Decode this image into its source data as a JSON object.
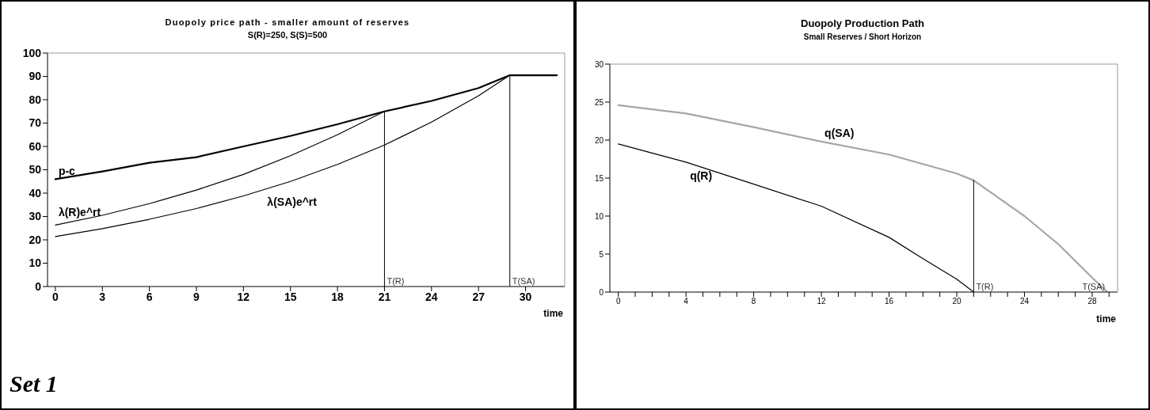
{
  "chart_data": [
    {
      "type": "line",
      "title": "Duopoly price path - smaller amount of reserves",
      "subtitle": "S(R)=250, S(S)=500",
      "xlabel": "time",
      "xlim": [
        -0.5,
        32.5
      ],
      "xticks": [
        0,
        3,
        6,
        9,
        12,
        15,
        18,
        21,
        24,
        27,
        30
      ],
      "ylim": [
        0,
        100
      ],
      "yticks": [
        0,
        10,
        20,
        30,
        40,
        50,
        60,
        70,
        80,
        90,
        100
      ],
      "marker": "none",
      "line_style": "solid",
      "annotations": [
        "Set 1"
      ],
      "ref_lines": [
        {
          "axis": "x",
          "value": 21,
          "label": "T(R)",
          "color": "#000000"
        },
        {
          "axis": "x",
          "value": 29,
          "label": "T(SA)",
          "color": "#000000"
        }
      ],
      "series": [
        {
          "name": "p-c",
          "color": "#000000",
          "x": [
            0,
            3,
            6,
            9,
            12,
            15,
            18,
            21,
            24,
            27,
            29,
            30,
            31,
            32
          ],
          "values": [
            46,
            49.3,
            53,
            55.4,
            60,
            64.5,
            69.5,
            75,
            79.5,
            85,
            90.5,
            90.5,
            90.5,
            90.5
          ]
        },
        {
          "name": "λ(R)e^rt",
          "color": "#000000",
          "x": [
            0,
            3,
            6,
            9,
            12,
            15,
            18,
            21
          ],
          "values": [
            26.3,
            30.5,
            35.5,
            41.3,
            48,
            56,
            65,
            75
          ]
        },
        {
          "name": "λ(SA)e^rt",
          "color": "#000000",
          "x": [
            0,
            3,
            6,
            9,
            12,
            15,
            18,
            21,
            24,
            27,
            29
          ],
          "values": [
            21.4,
            24.8,
            28.8,
            33.4,
            38.8,
            45,
            52.3,
            60.6,
            70.4,
            81.7,
            90.5
          ]
        }
      ]
    },
    {
      "type": "line",
      "title": "Duopoly Production Path",
      "subtitle": "Small Reserves / Short Horizon",
      "xlabel": "time",
      "xlim": [
        -0.5,
        29.5
      ],
      "xticks": [
        0,
        {
          "value": 1,
          "label": null
        },
        {
          "value": 2,
          "label": null
        },
        {
          "value": 3,
          "label": null
        },
        4,
        {
          "value": 5,
          "label": null
        },
        {
          "value": 6,
          "label": null
        },
        {
          "value": 7,
          "label": null
        },
        8,
        {
          "value": 9,
          "label": null
        },
        {
          "value": 10,
          "label": null
        },
        {
          "value": 11,
          "label": null
        },
        12,
        {
          "value": 13,
          "label": null
        },
        {
          "value": 14,
          "label": null
        },
        {
          "value": 15,
          "label": null
        },
        16,
        {
          "value": 17,
          "label": null
        },
        {
          "value": 18,
          "label": null
        },
        {
          "value": 19,
          "label": null
        },
        20,
        {
          "value": 21,
          "label": null
        },
        {
          "value": 22,
          "label": null
        },
        {
          "value": 23,
          "label": null
        },
        24,
        {
          "value": 25,
          "label": null
        },
        {
          "value": 26,
          "label": null
        },
        {
          "value": 27,
          "label": null
        },
        28,
        {
          "value": 29,
          "label": null
        }
      ],
      "ylim": [
        0,
        30
      ],
      "yticks": [
        0,
        5,
        10,
        15,
        20,
        25,
        30
      ],
      "marker": "none",
      "line_style": "solid",
      "annotations": [
        {
          "text": "T(R)",
          "x": 21,
          "y": 0
        },
        {
          "text": "T(SA)",
          "x": 28.9,
          "y": 0
        }
      ],
      "series": [
        {
          "name": "q(SA)",
          "color": "#a6a6a6",
          "x": [
            0,
            4,
            8,
            12,
            16,
            20,
            21,
            24,
            26,
            28,
            28.9
          ],
          "values": [
            24.6,
            23.5,
            21.7,
            19.8,
            18.1,
            15.6,
            14.7,
            10,
            6.3,
            1.9,
            0
          ]
        },
        {
          "name": "q(R)",
          "color": "#000000",
          "x": [
            0,
            4,
            8,
            12,
            16,
            18,
            20,
            21
          ],
          "values": [
            19.5,
            17.1,
            14.2,
            11.3,
            7.2,
            4.4,
            1.7,
            0
          ]
        },
        {
          "color": "#000000",
          "x": [
            21,
            21
          ],
          "values": [
            0,
            14.7
          ]
        }
      ]
    }
  ]
}
